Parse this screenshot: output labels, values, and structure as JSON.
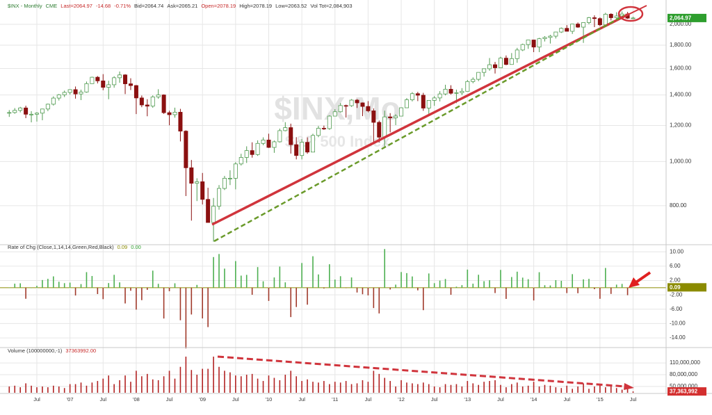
{
  "chart_data": [
    {
      "type": "candlestick",
      "header": [
        {
          "text": "$INX - Monthly",
          "color": "#2e7d32"
        },
        {
          "text": "CME",
          "color": "#2e7d32"
        },
        {
          "text": "Last=2064.97",
          "color": "#c62828"
        },
        {
          "text": "-14.68",
          "color": "#c62828"
        },
        {
          "text": "-0.71%",
          "color": "#c62828"
        },
        {
          "text": "Bid=2064.74",
          "color": "#333333"
        },
        {
          "text": "Ask=2065.21",
          "color": "#333333"
        },
        {
          "text": "Open=2078.19",
          "color": "#c62828"
        },
        {
          "text": "High=2078.19",
          "color": "#333333"
        },
        {
          "text": "Low=2063.52",
          "color": "#333333"
        },
        {
          "text": "Vol Tot=2,084,903",
          "color": "#333333"
        }
      ],
      "watermark": [
        "$INX,Mo",
        "S&P 500 Index"
      ],
      "log": true,
      "ylim": [
        657,
        2199
      ],
      "yticks": [
        {
          "value": 800,
          "label": "800.00"
        },
        {
          "value": 1000,
          "label": "1,000.00"
        },
        {
          "value": 1200,
          "label": "1,200.00"
        },
        {
          "value": 1400,
          "label": "1,400.00"
        },
        {
          "value": 1600,
          "label": "1,600.00"
        },
        {
          "value": 1800,
          "label": "1,800.00"
        },
        {
          "value": 2000,
          "label": "2,000.00"
        }
      ],
      "up_color": "#4f9a4f",
      "down_color": "#8b1010",
      "last_tag": "2,064.97",
      "tag_color": "#2e9e2e",
      "open": [
        1280,
        1281,
        1295,
        1311,
        1270,
        1270,
        1277,
        1304,
        1336,
        1378,
        1401,
        1418,
        1438,
        1407,
        1421,
        1482,
        1531,
        1503,
        1455,
        1474,
        1527,
        1549,
        1481,
        1468,
        1379,
        1331,
        1323,
        1386,
        1400,
        1280,
        1267,
        1283,
        1166,
        969,
        896,
        903,
        826,
        735,
        798,
        873,
        919,
        919,
        988,
        1021,
        1057,
        1036,
        1096,
        1115,
        1074,
        1105,
        1169,
        1187,
        1089,
        1031,
        1102,
        1049,
        1141,
        1183,
        1181,
        1258,
        1286,
        1327,
        1326,
        1364,
        1345,
        1321,
        1292,
        1219,
        1131,
        1253,
        1247,
        1258,
        1312,
        1366,
        1409,
        1398,
        1310,
        1362,
        1379,
        1407,
        1441,
        1412,
        1416,
        1426,
        1498,
        1515,
        1569,
        1598,
        1631,
        1606,
        1686,
        1633,
        1682,
        1757,
        1806,
        1848,
        1783,
        1860,
        1872,
        1884,
        1924,
        1960,
        1931,
        2003,
        1972,
        2018,
        2068,
        2059,
        1995,
        2105,
        2068,
        2086,
        2107,
        2063
      ],
      "high": [
        1297,
        1310,
        1318,
        1326,
        1290,
        1283,
        1306,
        1340,
        1390,
        1407,
        1431,
        1441,
        1461,
        1438,
        1498,
        1535,
        1540,
        1555,
        1504,
        1539,
        1576,
        1555,
        1523,
        1472,
        1396,
        1370,
        1397,
        1441,
        1404,
        1293,
        1313,
        1305,
        1171,
        1008,
        919,
        944,
        876,
        832,
        888,
        930,
        957,
        997,
        1040,
        1080,
        1102,
        1113,
        1130,
        1151,
        1112,
        1181,
        1220,
        1211,
        1131,
        1120,
        1130,
        1151,
        1197,
        1199,
        1263,
        1303,
        1344,
        1333,
        1371,
        1371,
        1348,
        1357,
        1308,
        1230,
        1293,
        1277,
        1270,
        1315,
        1378,
        1420,
        1422,
        1415,
        1364,
        1392,
        1427,
        1474,
        1470,
        1438,
        1449,
        1510,
        1530,
        1570,
        1598,
        1687,
        1654,
        1698,
        1709,
        1730,
        1776,
        1814,
        1849,
        1850,
        1868,
        1884,
        1897,
        1925,
        1968,
        1992,
        2005,
        2019,
        2019,
        2076,
        2093,
        2072,
        2120,
        2115,
        2126,
        2135,
        2129,
        2078
      ],
      "low": [
        1253,
        1273,
        1282,
        1245,
        1219,
        1224,
        1232,
        1290,
        1327,
        1361,
        1385,
        1403,
        1374,
        1364,
        1416,
        1481,
        1484,
        1434,
        1370,
        1452,
        1489,
        1406,
        1435,
        1271,
        1316,
        1257,
        1312,
        1373,
        1272,
        1201,
        1248,
        1107,
        840,
        742,
        819,
        805,
        735,
        667,
        784,
        866,
        888,
        869,
        980,
        993,
        1020,
        1029,
        1086,
        1071,
        1045,
        1101,
        1165,
        1041,
        1011,
        1011,
        1040,
        1048,
        1131,
        1173,
        1174,
        1258,
        1281,
        1249,
        1318,
        1311,
        1258,
        1282,
        1102,
        1101,
        1074,
        1159,
        1202,
        1258,
        1312,
        1355,
        1357,
        1292,
        1267,
        1325,
        1355,
        1397,
        1403,
        1343,
        1399,
        1426,
        1485,
        1501,
        1536,
        1582,
        1560,
        1605,
        1627,
        1633,
        1647,
        1747,
        1767,
        1738,
        1738,
        1834,
        1815,
        1862,
        1915,
        1931,
        1905,
        1965,
        1821,
        2001,
        1972,
        1981,
        1981,
        2040,
        2048,
        2068,
        2056,
        2063
      ],
      "close": [
        1281,
        1295,
        1311,
        1270,
        1270,
        1277,
        1304,
        1336,
        1378,
        1401,
        1418,
        1438,
        1407,
        1421,
        1482,
        1531,
        1503,
        1455,
        1474,
        1527,
        1549,
        1481,
        1468,
        1379,
        1331,
        1323,
        1386,
        1400,
        1280,
        1267,
        1283,
        1166,
        969,
        896,
        903,
        826,
        735,
        798,
        873,
        919,
        919,
        988,
        1021,
        1057,
        1036,
        1096,
        1115,
        1074,
        1105,
        1169,
        1187,
        1089,
        1031,
        1102,
        1049,
        1141,
        1183,
        1181,
        1258,
        1286,
        1327,
        1326,
        1364,
        1345,
        1321,
        1292,
        1219,
        1131,
        1253,
        1247,
        1258,
        1312,
        1366,
        1409,
        1398,
        1310,
        1362,
        1379,
        1407,
        1441,
        1412,
        1416,
        1426,
        1498,
        1515,
        1569,
        1598,
        1631,
        1606,
        1686,
        1633,
        1682,
        1757,
        1806,
        1848,
        1783,
        1860,
        1872,
        1884,
        1924,
        1960,
        1931,
        2003,
        1972,
        2018,
        2068,
        2059,
        1995,
        2105,
        2068,
        2086,
        2107,
        2063,
        2064.97
      ]
    },
    {
      "type": "bar",
      "title": "Rate of Chg (Close,1,14,14,Green,Red,Black)",
      "title_values": [
        {
          "text": "0.09",
          "color": "#8b8b00"
        },
        {
          "text": "0.00",
          "color": "#2e9e2e"
        }
      ],
      "ylim": [
        -16.7,
        11.4
      ],
      "yticks": [
        {
          "value": 10,
          "label": "10.00"
        },
        {
          "value": 6,
          "label": "6.00"
        },
        {
          "value": 2,
          "label": "2.00"
        },
        {
          "value": -2,
          "label": "-2.00"
        },
        {
          "value": -6,
          "label": "-6.00"
        },
        {
          "value": -10,
          "label": "-10.00"
        },
        {
          "value": -14,
          "label": "-14.00"
        }
      ],
      "colors": {
        "up": "#4caf50",
        "down": "#a0392a"
      },
      "last_tag": "0.09",
      "tag_color": "#8b8b00",
      "values": [
        0.05,
        1.11,
        1.22,
        -3.09,
        0.01,
        0.51,
        2.13,
        2.46,
        3.15,
        1.65,
        1.26,
        1.41,
        -2.18,
        1.0,
        4.33,
        3.25,
        -1.78,
        -3.2,
        1.29,
        3.58,
        1.48,
        -4.4,
        -0.86,
        -6.12,
        -3.48,
        -0.6,
        4.75,
        1.07,
        -8.6,
        -0.99,
        1.22,
        -9.08,
        -16.94,
        -7.48,
        0.78,
        -8.57,
        -10.99,
        8.54,
        9.39,
        5.31,
        0.02,
        7.41,
        3.36,
        3.57,
        -1.98,
        5.74,
        1.78,
        -3.7,
        2.85,
        5.88,
        1.48,
        -8.2,
        -5.39,
        6.88,
        -4.74,
        8.76,
        3.69,
        -0.23,
        6.53,
        2.26,
        3.2,
        -0.1,
        2.85,
        -1.35,
        -1.83,
        -2.15,
        -5.68,
        -7.18,
        10.77,
        -0.51,
        0.85,
        4.36,
        4.06,
        3.13,
        -0.75,
        -6.27,
        3.96,
        1.26,
        1.98,
        2.42,
        -1.98,
        0.28,
        0.71,
        5.04,
        1.11,
        3.6,
        1.81,
        2.08,
        -1.5,
        4.95,
        -3.13,
        2.97,
        4.46,
        2.8,
        2.36,
        -3.56,
        4.31,
        0.69,
        0.62,
        2.1,
        1.91,
        -1.51,
        3.77,
        -1.55,
        2.32,
        2.45,
        -0.42,
        -3.1,
        5.49,
        -1.74,
        0.85,
        1.05,
        -2.1,
        0.09
      ]
    },
    {
      "type": "bar",
      "title": "Volume (100000000,-1)",
      "title_values": [
        {
          "text": "37363992.00",
          "color": "#c62828"
        }
      ],
      "ylim": [
        34000000,
        142000000
      ],
      "yticks": [
        {
          "value": 110000000,
          "label": "110,000,000"
        },
        {
          "value": 80000000,
          "label": "80,000,000"
        },
        {
          "value": 50000000,
          "label": "50,000,000"
        }
      ],
      "color": "#b22222",
      "last_tag": "37,363,992",
      "tag_color": "#d32f2f",
      "categories": [
        null,
        null,
        null,
        null,
        null,
        "Jul",
        null,
        null,
        null,
        null,
        null,
        "'07",
        null,
        null,
        null,
        null,
        null,
        "Jul",
        null,
        null,
        null,
        null,
        null,
        "'08",
        null,
        null,
        null,
        null,
        null,
        "Jul",
        null,
        null,
        null,
        null,
        null,
        "'09",
        null,
        null,
        null,
        null,
        null,
        "Jul",
        null,
        null,
        null,
        null,
        null,
        "'10",
        null,
        null,
        null,
        null,
        null,
        "Jul",
        null,
        null,
        null,
        null,
        null,
        "'11",
        null,
        null,
        null,
        null,
        null,
        "Jul",
        null,
        null,
        null,
        null,
        null,
        "'12",
        null,
        null,
        null,
        null,
        null,
        "Jul",
        null,
        null,
        null,
        null,
        null,
        "'13",
        null,
        null,
        null,
        null,
        null,
        "Jul",
        null,
        null,
        null,
        null,
        null,
        "'14",
        null,
        null,
        null,
        null,
        null,
        "Jul",
        null,
        null,
        null,
        null,
        null,
        "'15",
        null,
        null,
        null,
        null,
        null,
        "Jul"
      ],
      "values": [
        50000000,
        52000000,
        48000000,
        58000000,
        52000000,
        48000000,
        50000000,
        48000000,
        52000000,
        50000000,
        46000000,
        56000000,
        56000000,
        60000000,
        52000000,
        60000000,
        64000000,
        70000000,
        78000000,
        56000000,
        66000000,
        78000000,
        62000000,
        90000000,
        76000000,
        82000000,
        68000000,
        66000000,
        76000000,
        90000000,
        70000000,
        100000000,
        126000000,
        92000000,
        80000000,
        95000000,
        95000000,
        126000000,
        100000000,
        90000000,
        86000000,
        78000000,
        76000000,
        80000000,
        82000000,
        70000000,
        64000000,
        78000000,
        72000000,
        66000000,
        80000000,
        90000000,
        76000000,
        64000000,
        68000000,
        62000000,
        60000000,
        64000000,
        56000000,
        62000000,
        60000000,
        64000000,
        56000000,
        58000000,
        66000000,
        62000000,
        90000000,
        82000000,
        72000000,
        64000000,
        50000000,
        66000000,
        60000000,
        58000000,
        56000000,
        60000000,
        56000000,
        50000000,
        48000000,
        56000000,
        54000000,
        56000000,
        50000000,
        64000000,
        58000000,
        54000000,
        62000000,
        64000000,
        66000000,
        54000000,
        48000000,
        56000000,
        60000000,
        50000000,
        52000000,
        62000000,
        50000000,
        54000000,
        52000000,
        48000000,
        46000000,
        52000000,
        44000000,
        50000000,
        58000000,
        44000000,
        50000000,
        56000000,
        48000000,
        50000000,
        46000000,
        42000000,
        48000000,
        37363992
      ]
    }
  ]
}
